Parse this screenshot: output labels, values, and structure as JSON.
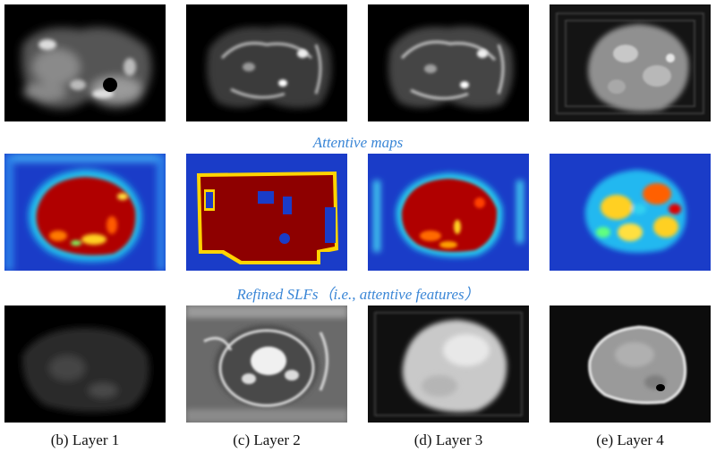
{
  "figure": {
    "row_titles": {
      "attentive_maps": "Attentive maps",
      "refined_slfs": "Refined SLFs（i.e., attentive features）"
    },
    "captions": [
      "(b) Layer 1",
      "(c) Layer 2",
      "(d) Layer 3",
      "(e) Layer 4"
    ],
    "colors": {
      "title_blue": "#3a86d6",
      "jet_background": "#1a3cc8",
      "jet_hot": "#b00000"
    }
  }
}
